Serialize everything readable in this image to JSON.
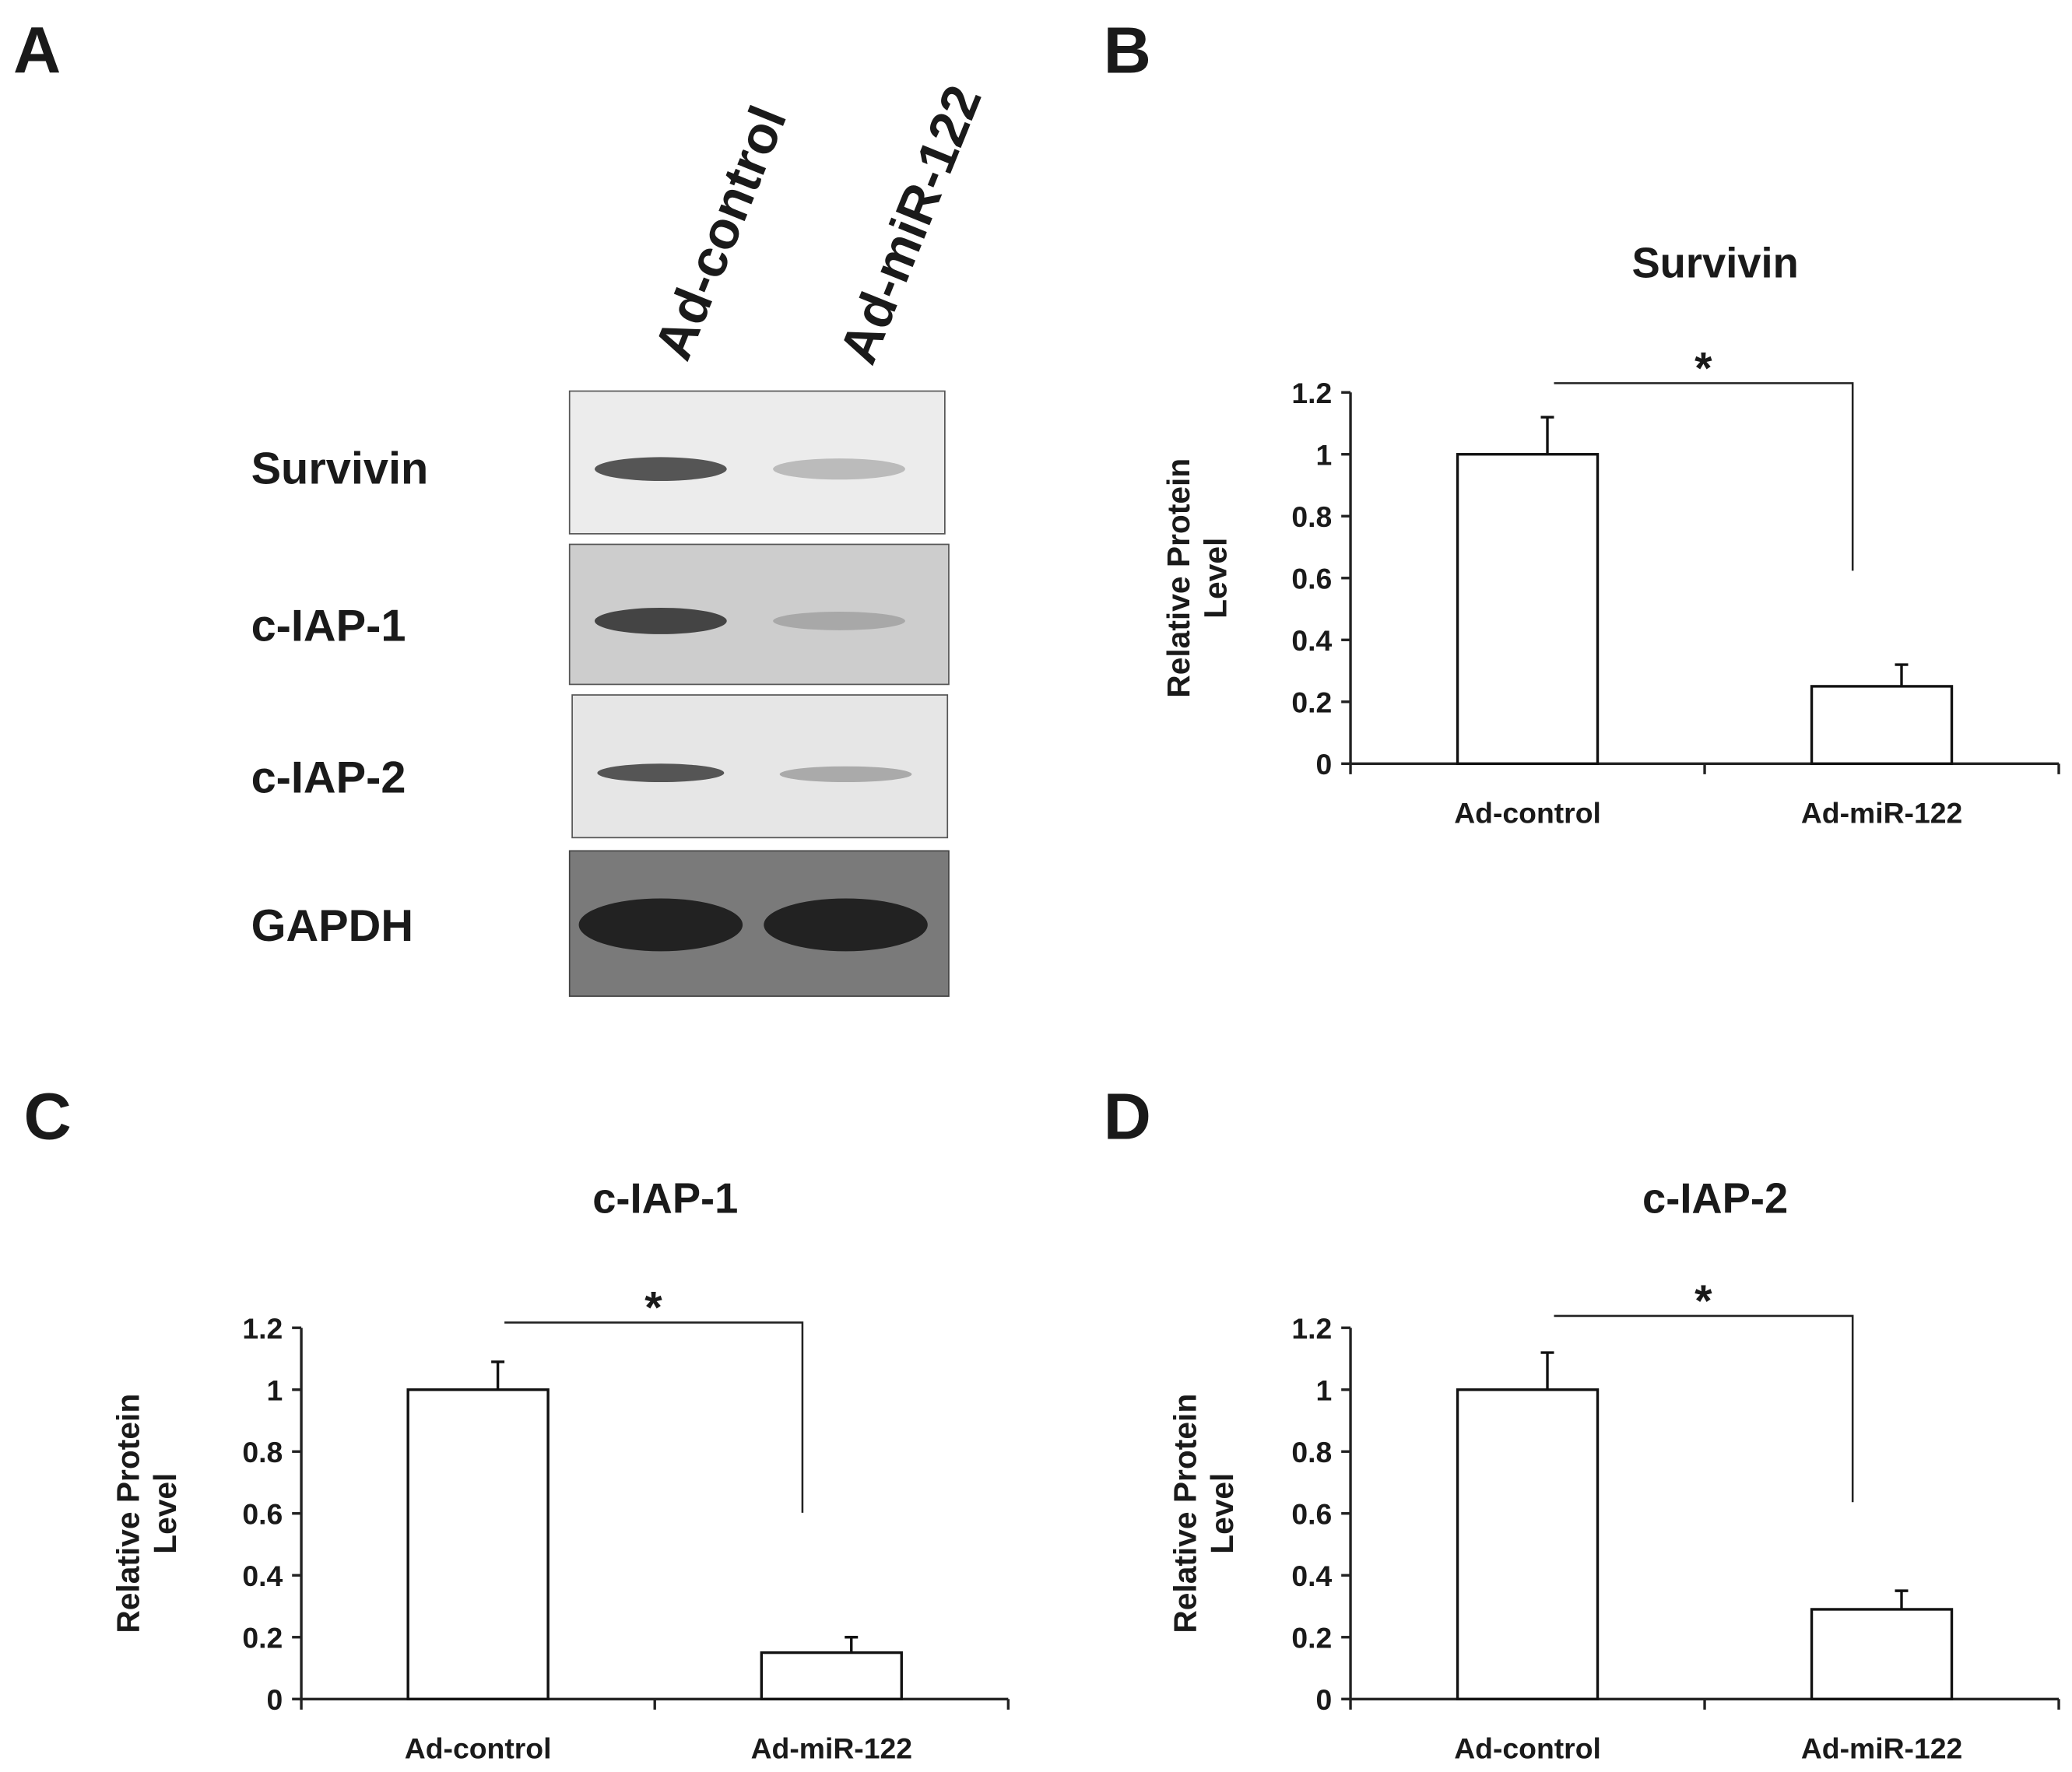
{
  "panels": [
    "A",
    "B",
    "C",
    "D"
  ],
  "blot": {
    "lanes": [
      "Ad-control",
      "Ad-miR-122"
    ],
    "proteins": [
      "Survivin",
      "c-IAP-1",
      "c-IAP-2",
      "GAPDH"
    ]
  },
  "chart_data": [
    {
      "type": "bar",
      "title": "Survivin",
      "ylabel": [
        "Relative Protein",
        "Level"
      ],
      "categories": [
        "Ad-control",
        "Ad-miR-122"
      ],
      "values": [
        1,
        0.25
      ],
      "errors": [
        0.12,
        0.07
      ],
      "color": "#ffffff",
      "ylim": [
        0,
        1.2
      ],
      "yticks": [
        0,
        0.2,
        0.4,
        0.6,
        0.8,
        1,
        1.2
      ],
      "annotation": "*"
    },
    {
      "type": "bar",
      "title": "c-IAP-1",
      "ylabel": [
        "Relative Protein",
        "Level"
      ],
      "categories": [
        "Ad-control",
        "Ad-miR-122"
      ],
      "values": [
        1,
        0.15
      ],
      "errors": [
        0.09,
        0.05
      ],
      "color": "#ffffff",
      "ylim": [
        0,
        1.2
      ],
      "yticks": [
        0,
        0.2,
        0.4,
        0.6,
        0.8,
        1,
        1.2
      ],
      "annotation": "*"
    },
    {
      "type": "bar",
      "title": "c-IAP-2",
      "ylabel": [
        "Relative Protein",
        "Level"
      ],
      "categories": [
        "Ad-control",
        "Ad-miR-122"
      ],
      "values": [
        1,
        0.29
      ],
      "errors": [
        0.12,
        0.06
      ],
      "color": "#ffffff",
      "ylim": [
        0,
        1.2
      ],
      "yticks": [
        0,
        0.2,
        0.4,
        0.6,
        0.8,
        1,
        1.2
      ],
      "annotation": "*"
    }
  ]
}
